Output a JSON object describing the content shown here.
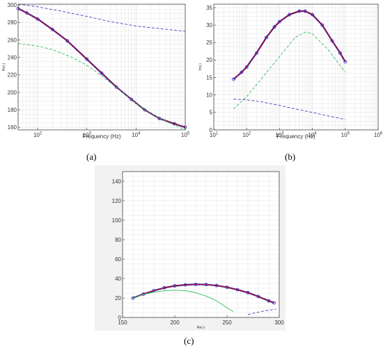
{
  "captions": {
    "a": "(a)",
    "b": "(b)",
    "c": "(c)"
  },
  "colors": {
    "measured": "#2020d0",
    "fit": "#8b0000",
    "fit_overlay": "#e040e0",
    "green_component": "#30c060",
    "blue_component": "#4040c0",
    "grid": "#e2e2e2",
    "frame_bg": "#f2f2f2"
  },
  "chart_data": [
    {
      "id": "a",
      "type": "line",
      "xlabel": "Frequency (Hz)",
      "ylabel": "Re(-)",
      "xscale": "log",
      "xlim": [
        40,
        100000
      ],
      "ylim": [
        157,
        301
      ],
      "xticks": [
        {
          "value": 100,
          "base": "10",
          "exp": "2"
        },
        {
          "value": 1000,
          "base": "10",
          "exp": "3"
        },
        {
          "value": 10000,
          "base": "10",
          "exp": "4"
        },
        {
          "value": 100000,
          "base": "10",
          "exp": "5"
        }
      ],
      "yticks": [
        160,
        180,
        200,
        220,
        240,
        260,
        280,
        300
      ],
      "grid": true,
      "series": [
        {
          "role": "measured",
          "style": "circles",
          "x": [
            40,
            60,
            100,
            200,
            400,
            1000,
            2000,
            4000,
            8000,
            15000,
            30000,
            60000,
            100000
          ],
          "y": [
            296,
            291,
            284,
            272,
            259,
            238,
            222,
            206,
            192,
            180,
            170,
            164,
            160
          ]
        },
        {
          "role": "fit",
          "style": "solid",
          "x": [
            40,
            60,
            100,
            200,
            400,
            1000,
            2000,
            4000,
            8000,
            15000,
            30000,
            60000,
            100000
          ],
          "y": [
            296,
            291,
            284,
            272,
            259,
            238,
            222,
            206,
            192,
            180,
            170,
            164,
            160
          ]
        },
        {
          "role": "blue_component",
          "style": "dashed",
          "x": [
            40,
            100,
            300,
            1000,
            3000,
            10000,
            30000,
            100000
          ],
          "y": [
            301,
            298,
            293,
            287,
            281,
            276,
            273,
            270
          ]
        },
        {
          "role": "green_component",
          "style": "dashed",
          "x": [
            40,
            100,
            200,
            500,
            1000,
            2000,
            5000,
            10000,
            30000,
            100000
          ],
          "y": [
            256,
            253,
            249,
            240,
            231,
            219,
            201,
            187,
            170,
            157
          ]
        }
      ]
    },
    {
      "id": "b",
      "type": "line",
      "xlabel": "Frequency (Hz)",
      "ylabel": "Im(-)",
      "xscale": "log",
      "xlim": [
        10,
        1000000
      ],
      "ylim": [
        0,
        36
      ],
      "xticks": [
        {
          "value": 10,
          "base": "10",
          "exp": "1"
        },
        {
          "value": 100,
          "base": "10",
          "exp": "2"
        },
        {
          "value": 1000,
          "base": "10",
          "exp": "3"
        },
        {
          "value": 10000,
          "base": "10",
          "exp": "4"
        },
        {
          "value": 100000,
          "base": "10",
          "exp": "5"
        },
        {
          "value": 1000000,
          "base": "10",
          "exp": "6"
        }
      ],
      "yticks": [
        0,
        5,
        10,
        15,
        20,
        25,
        30,
        35
      ],
      "grid": true,
      "series": [
        {
          "role": "measured",
          "style": "circles",
          "x": [
            40,
            70,
            100,
            200,
            400,
            700,
            1000,
            2000,
            4000,
            6000,
            10000,
            20000,
            40000,
            70000,
            100000
          ],
          "y": [
            14.5,
            16.5,
            18,
            22,
            26.5,
            29.5,
            31,
            33,
            34,
            34,
            33,
            30,
            25.5,
            22,
            19.5
          ]
        },
        {
          "role": "fit",
          "style": "solid",
          "x": [
            40,
            70,
            100,
            200,
            400,
            700,
            1000,
            2000,
            4000,
            6000,
            10000,
            20000,
            40000,
            70000,
            100000
          ],
          "y": [
            14.5,
            16.5,
            18,
            22,
            26.5,
            29.5,
            31,
            33,
            34,
            34,
            33,
            30,
            25.5,
            22,
            19.5
          ]
        },
        {
          "role": "green_component",
          "style": "dashed",
          "x": [
            40,
            100,
            300,
            1000,
            3000,
            6000,
            10000,
            30000,
            100000
          ],
          "y": [
            6,
            9.5,
            15,
            21,
            26.5,
            28,
            27.5,
            23,
            16.5
          ]
        },
        {
          "role": "blue_component",
          "style": "dashed",
          "x": [
            40,
            100,
            300,
            1000,
            3000,
            10000,
            30000,
            100000
          ],
          "y": [
            8.8,
            8.6,
            8.0,
            7.0,
            6.0,
            5.0,
            4.0,
            3.0
          ]
        }
      ]
    },
    {
      "id": "c",
      "type": "line",
      "xlabel": "Re(-)",
      "ylabel": "",
      "xlim": [
        150,
        300
      ],
      "ylim": [
        0,
        150
      ],
      "xticks": [
        150,
        200,
        250,
        300
      ],
      "yticks": [
        0,
        20,
        40,
        60,
        80,
        100,
        120,
        140
      ],
      "grid": true,
      "series": [
        {
          "role": "measured",
          "style": "circles",
          "x": [
            160,
            170,
            180,
            190,
            200,
            210,
            220,
            230,
            240,
            250,
            260,
            270,
            280,
            290,
            295
          ],
          "y": [
            20,
            24,
            27.5,
            30.5,
            32.5,
            33.5,
            34,
            33.8,
            32.8,
            31,
            28.5,
            25.5,
            21.5,
            17,
            15
          ]
        },
        {
          "role": "fit",
          "style": "solid",
          "x": [
            160,
            170,
            180,
            190,
            200,
            210,
            220,
            230,
            240,
            250,
            260,
            270,
            280,
            290,
            295
          ],
          "y": [
            20,
            24,
            27.5,
            30.5,
            32.5,
            33.5,
            34,
            33.8,
            32.8,
            31,
            28.5,
            25.5,
            21.5,
            17,
            15
          ]
        },
        {
          "role": "green_component",
          "style": "solid",
          "x": [
            158,
            170,
            180,
            190,
            200,
            210,
            220,
            230,
            240,
            250,
            256
          ],
          "y": [
            19,
            23.5,
            26,
            27.5,
            28,
            27.5,
            25.5,
            22,
            17,
            10,
            6
          ]
        },
        {
          "role": "blue_component",
          "style": "dashed",
          "x": [
            270,
            280,
            290,
            297
          ],
          "y": [
            3,
            5.5,
            7.5,
            8.5
          ]
        }
      ]
    }
  ]
}
